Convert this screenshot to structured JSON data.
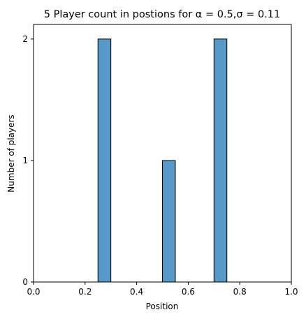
{
  "chart_data": {
    "type": "bar",
    "title": "5 Player count in postions for α = 0.5,σ = 0.11",
    "xlabel": "Position",
    "ylabel": "Number of players",
    "xlim": [
      0.0,
      1.0
    ],
    "ylim": [
      0,
      2.12
    ],
    "xticks": [
      "0.0",
      "0.2",
      "0.4",
      "0.6",
      "0.8",
      "1.0"
    ],
    "xtick_values": [
      0.0,
      0.2,
      0.4,
      0.6,
      0.8,
      1.0
    ],
    "yticks": [
      "0",
      "1",
      "2"
    ],
    "ytick_values": [
      0,
      1,
      2
    ],
    "bin_edges": [
      0.25,
      0.3,
      0.35,
      0.4,
      0.45,
      0.5,
      0.55,
      0.6,
      0.65,
      0.7,
      0.75
    ],
    "values": [
      2,
      0,
      0,
      0,
      0,
      1,
      0,
      0,
      0,
      2
    ],
    "grid": false,
    "bar_color": "#5799c8",
    "edge_color": "#000000"
  }
}
